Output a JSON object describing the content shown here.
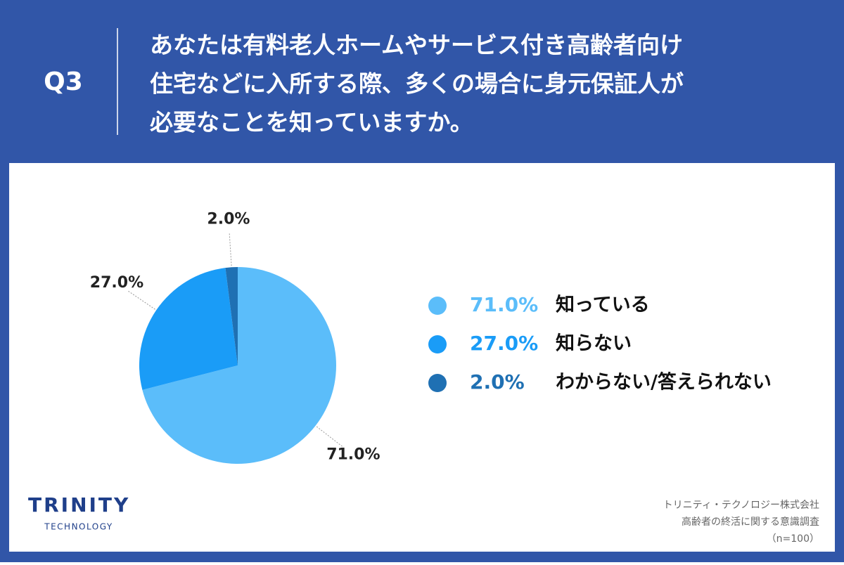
{
  "header": {
    "badge": "Q3",
    "question": [
      "あなたは有料老人ホームやサービス付き高齢者向け",
      "住宅などに入所する際、多くの場合に身元保証人が",
      "必要なことを知っていますか。"
    ]
  },
  "chart_data": {
    "type": "pie",
    "categories": [
      "知っている",
      "知らない",
      "わからない/答えられない"
    ],
    "values": [
      71,
      27,
      2
    ],
    "value_labels": [
      "71.0%",
      "27.0%",
      "2.0%"
    ],
    "colors": [
      "#5bbdfa",
      "#1a9cf7",
      "#1f70b3"
    ]
  },
  "footer": {
    "logo": "TRINITY",
    "logo_sub": "TECHNOLOGY",
    "source": [
      "トリニティ・テクノロジー株式会社",
      "高齢者の終活に関する意識調査",
      "（n=100）"
    ]
  }
}
